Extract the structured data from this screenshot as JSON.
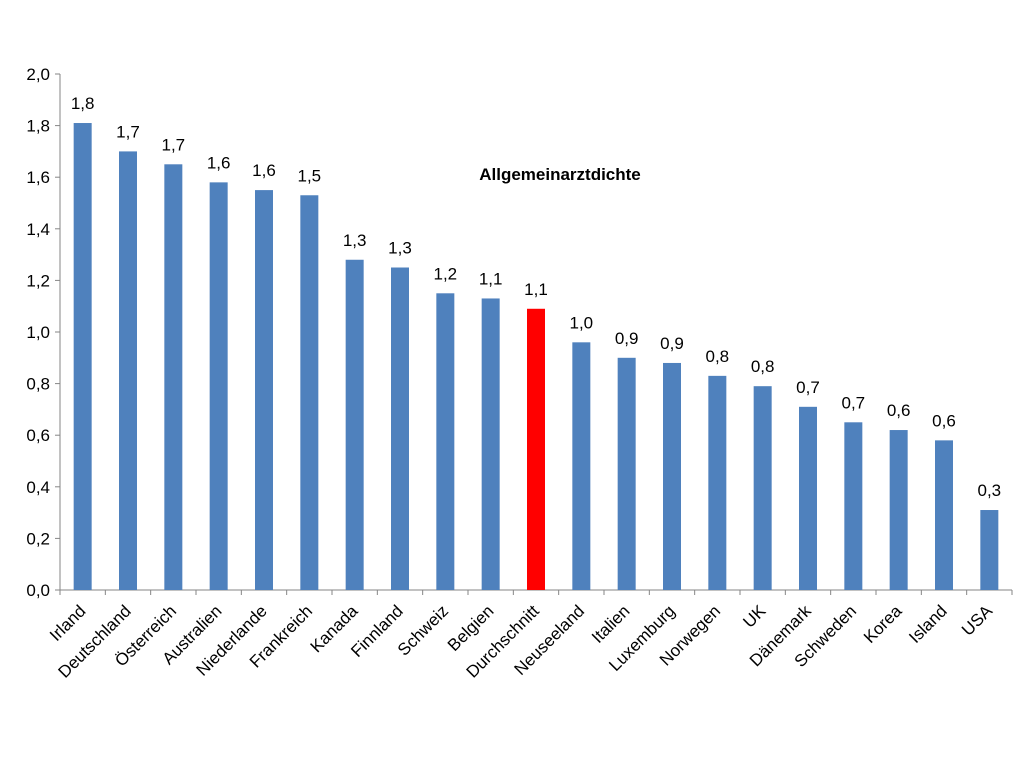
{
  "chart_data": {
    "type": "bar",
    "title": "Allgemeinarztdichte",
    "xlabel": "",
    "ylabel": "",
    "ylim": [
      0,
      2.0
    ],
    "yticks": [
      "0,0",
      "0,2",
      "0,4",
      "0,6",
      "0,8",
      "1,0",
      "1,2",
      "1,4",
      "1,6",
      "1,8",
      "2,0"
    ],
    "ytick_values": [
      0,
      0.2,
      0.4,
      0.6,
      0.8,
      1.0,
      1.2,
      1.4,
      1.6,
      1.8,
      2.0
    ],
    "grid": false,
    "legend": "none",
    "categories": [
      "Irland",
      "Deutschland",
      "Österreich",
      "Australien",
      "Niederlande",
      "Frankreich",
      "Kanada",
      "Finnland",
      "Schweiz",
      "Belgien",
      "Durchschnitt",
      "Neuseeland",
      "Italien",
      "Luxemburg",
      "Norwegen",
      "UK",
      "Dänemark",
      "Schweden",
      "Korea",
      "Island",
      "USA"
    ],
    "values": [
      1.81,
      1.7,
      1.65,
      1.58,
      1.55,
      1.53,
      1.28,
      1.25,
      1.15,
      1.13,
      1.09,
      0.96,
      0.9,
      0.88,
      0.83,
      0.79,
      0.71,
      0.65,
      0.62,
      0.58,
      0.31
    ],
    "data_labels": [
      "1,8",
      "1,7",
      "1,7",
      "1,6",
      "1,6",
      "1,5",
      "1,3",
      "1,3",
      "1,2",
      "1,1",
      "1,1",
      "1,0",
      "0,9",
      "0,9",
      "0,8",
      "0,8",
      "0,7",
      "0,7",
      "0,6",
      "0,6",
      "0,3"
    ],
    "colors": {
      "bar": "#4f81bd",
      "highlight": "#ff0000",
      "axis": "#868686"
    },
    "highlight_category": "Durchschnitt"
  }
}
